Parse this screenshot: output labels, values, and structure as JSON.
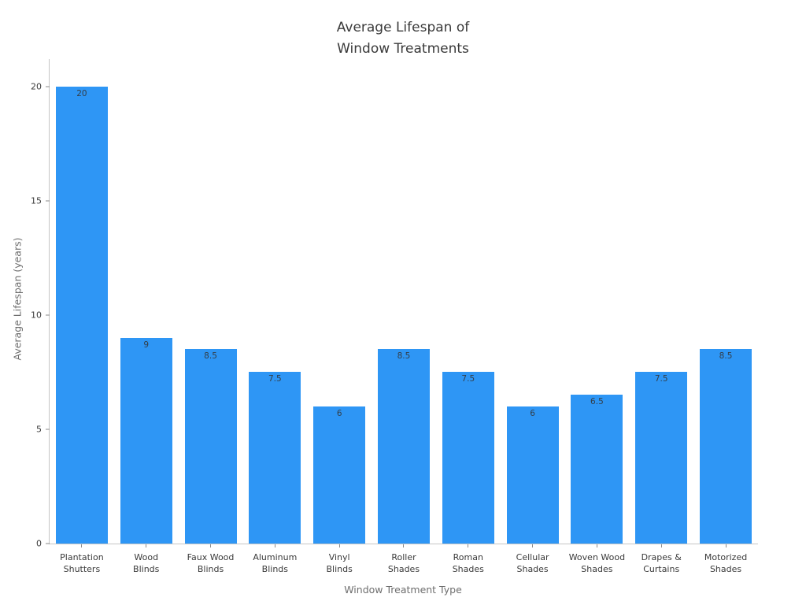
{
  "title": "Average Lifespan of\nWindow Treatments",
  "chart_data": {
    "type": "bar",
    "title": "Average Lifespan of Window Treatments",
    "xlabel": "Window Treatment Type",
    "ylabel": "Average Lifespan (years)",
    "categories": [
      "Plantation\nShutters",
      "Wood\nBlinds",
      "Faux Wood\nBlinds",
      "Aluminum\nBlinds",
      "Vinyl\nBlinds",
      "Roller\nShades",
      "Roman\nShades",
      "Cellular\nShades",
      "Woven Wood\nShades",
      "Drapes &\nCurtains",
      "Motorized\nShades"
    ],
    "values": [
      20,
      9,
      8.5,
      7.5,
      6,
      8.5,
      7.5,
      6,
      6.5,
      7.5,
      8.5
    ],
    "yticks": [
      0,
      5,
      10,
      15,
      20
    ],
    "ylim": [
      0,
      21.2
    ],
    "bar_color": "#2E96F5",
    "grid": false,
    "legend_position": "none"
  }
}
